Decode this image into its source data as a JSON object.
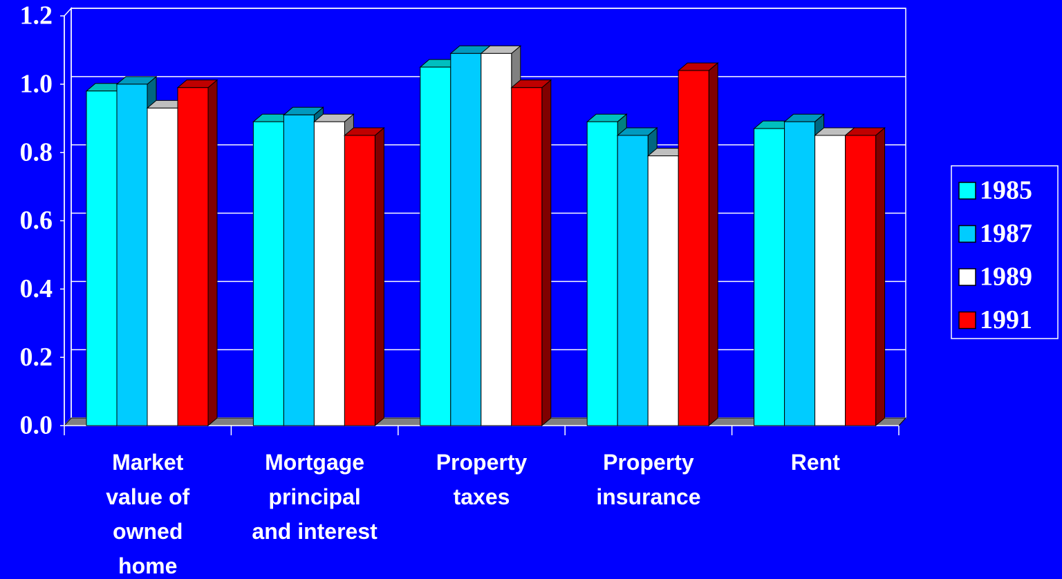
{
  "chart_data": {
    "type": "bar3d",
    "categories": [
      "Market value of owned home",
      "Mortgage principal and interest",
      "Property taxes",
      "Property insurance",
      "Rent"
    ],
    "series": [
      {
        "name": "1985",
        "color": "#00ffff",
        "values": [
          0.98,
          0.89,
          1.05,
          0.89,
          0.87
        ]
      },
      {
        "name": "1987",
        "color": "#00ccff",
        "values": [
          1.0,
          0.91,
          1.09,
          0.85,
          0.89
        ]
      },
      {
        "name": "1989",
        "color": "#ffffff",
        "values": [
          0.93,
          0.89,
          1.09,
          0.79,
          0.85
        ]
      },
      {
        "name": "1991",
        "color": "#ff0000",
        "values": [
          0.99,
          0.85,
          0.99,
          1.04,
          0.85
        ]
      }
    ],
    "ylim": [
      0,
      1.2
    ],
    "yticks": [
      {
        "value": 0,
        "label": "0.0"
      },
      0.2,
      0.4,
      0.6,
      0.8,
      {
        "value": 1,
        "label": "1.0"
      },
      1.2
    ],
    "grid": true,
    "legend": "right"
  }
}
